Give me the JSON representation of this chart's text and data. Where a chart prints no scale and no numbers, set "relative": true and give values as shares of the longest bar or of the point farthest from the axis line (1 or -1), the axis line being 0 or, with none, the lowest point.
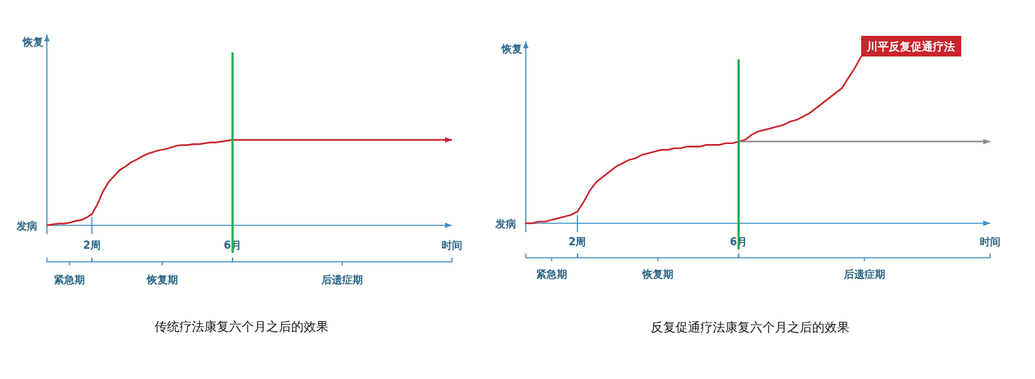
{
  "chart_data": [
    {
      "type": "line",
      "title": "传统疗法康复六个月之后的效果",
      "xlabel": "时间",
      "ylabel": "恢复",
      "relative": true,
      "categories": [
        null,
        null,
        null,
        null,
        null,
        null,
        null,
        null,
        "2周",
        null,
        null,
        null,
        null,
        null,
        null,
        null,
        null,
        null,
        null,
        null,
        null,
        null,
        null,
        null,
        null,
        null,
        null,
        null,
        null,
        null,
        null,
        null,
        null,
        "6月",
        null,
        null,
        null,
        null,
        null,
        null,
        null,
        null,
        null,
        null,
        null,
        null,
        null,
        null,
        null,
        null,
        null,
        null,
        null,
        null,
        null,
        null,
        null,
        null,
        null,
        null,
        null,
        null,
        null,
        null,
        null,
        null,
        null,
        null,
        null,
        null,
        null,
        null,
        null
      ],
      "series": [
        {
          "color": "#c8242b",
          "values": [
            0,
            0.01,
            0.02,
            0.02,
            0.03,
            0.05,
            0.06,
            0.09,
            0.13,
            0.25,
            0.4,
            0.51,
            0.58,
            0.65,
            0.69,
            0.74,
            0.77,
            0.81,
            0.84,
            0.86,
            0.88,
            0.89,
            0.91,
            0.93,
            0.94,
            0.94,
            0.95,
            0.95,
            0.96,
            0.97,
            0.97,
            0.98,
            0.99,
            1,
            1,
            1,
            1,
            1,
            1,
            1,
            1,
            1,
            1,
            1,
            1,
            1,
            1,
            1,
            1,
            1,
            1,
            1,
            1,
            1,
            1,
            1,
            1,
            1,
            1,
            1,
            1,
            1,
            1,
            1,
            1,
            1,
            1,
            1,
            1,
            1,
            1,
            1,
            1
          ]
        }
      ],
      "ref_lines": [
        {
          "axis": "x",
          "value": "6月",
          "color": "#1db14b"
        }
      ],
      "annotations": [
        "发病",
        "紧急期",
        "恢复期",
        "后遗症期"
      ]
    },
    {
      "type": "line",
      "title": "反复促通疗法康复六个月之后的效果",
      "xlabel": "时间",
      "ylabel": "恢复",
      "relative": true,
      "categories": [
        null,
        null,
        null,
        null,
        null,
        null,
        null,
        null,
        "2周",
        null,
        null,
        null,
        null,
        null,
        null,
        null,
        null,
        null,
        null,
        null,
        null,
        null,
        null,
        null,
        null,
        null,
        null,
        null,
        null,
        null,
        null,
        null,
        null,
        "6月",
        null,
        null,
        null,
        null,
        null,
        null,
        null,
        null,
        null,
        null,
        null,
        null,
        null,
        null,
        null,
        null,
        null,
        null,
        null,
        null,
        null,
        null,
        null,
        null,
        null,
        null,
        null,
        null,
        null,
        null,
        null,
        null,
        null,
        null,
        null,
        null,
        null,
        null,
        null
      ],
      "series": [
        {
          "name": "川平反复促通疗法",
          "color": "#c8242b",
          "values": [
            0,
            0,
            0.01,
            0.01,
            0.02,
            0.03,
            0.04,
            0.05,
            0.07,
            0.13,
            0.2,
            0.25,
            0.28,
            0.31,
            0.34,
            0.36,
            0.38,
            0.39,
            0.41,
            0.42,
            0.43,
            0.44,
            0.44,
            0.45,
            0.45,
            0.46,
            0.46,
            0.46,
            0.47,
            0.47,
            0.47,
            0.48,
            0.48,
            0.49,
            0.5,
            0.53,
            0.55,
            0.56,
            0.57,
            0.58,
            0.59,
            0.61,
            0.62,
            0.64,
            0.66,
            0.69,
            0.72,
            0.75,
            0.78,
            0.81,
            0.87,
            0.93,
            1,
            null,
            null,
            null,
            null,
            null,
            null,
            null,
            null,
            null,
            null,
            null,
            null,
            null,
            null,
            null,
            null,
            null,
            null,
            null,
            null
          ]
        },
        {
          "color": "#8a8a8a",
          "values": [
            null,
            null,
            null,
            null,
            null,
            null,
            null,
            null,
            null,
            null,
            null,
            null,
            null,
            null,
            null,
            null,
            null,
            null,
            null,
            null,
            null,
            null,
            null,
            null,
            null,
            null,
            null,
            null,
            null,
            null,
            null,
            null,
            null,
            0.49,
            0.49,
            0.49,
            0.49,
            0.49,
            0.49,
            0.49,
            0.49,
            0.49,
            0.49,
            0.49,
            0.49,
            0.49,
            0.49,
            0.49,
            0.49,
            0.49,
            0.49,
            0.49,
            0.49,
            0.49,
            0.49,
            0.49,
            0.49,
            0.49,
            0.49,
            0.49,
            0.49,
            0.49,
            0.49,
            0.49,
            0.49,
            0.49,
            0.49,
            0.49,
            0.49,
            0.49,
            0.49,
            0.49,
            0.49
          ]
        }
      ],
      "ref_lines": [
        {
          "axis": "x",
          "value": "6月",
          "color": "#1db14b"
        }
      ],
      "annotations": [
        "发病",
        "紧急期",
        "恢复期",
        "后遗症期"
      ]
    }
  ]
}
